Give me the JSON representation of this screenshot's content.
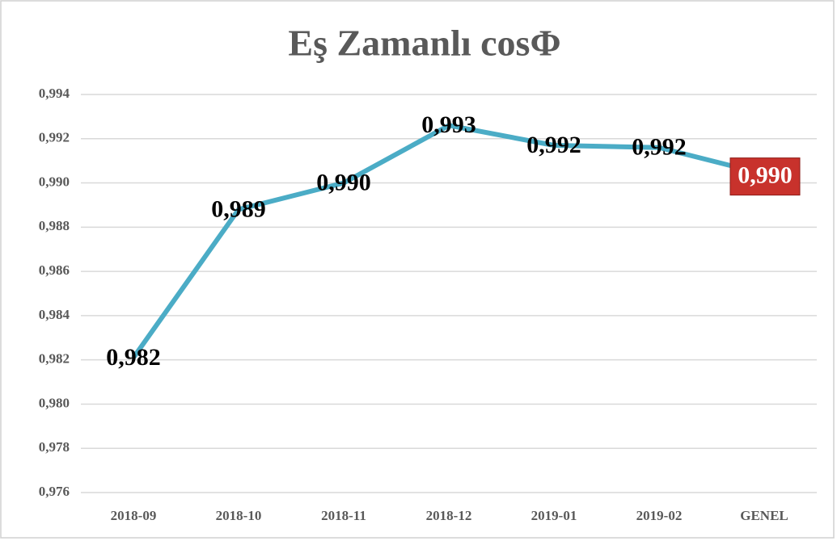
{
  "chart_data": {
    "type": "line",
    "title": "Eş Zamanlı cosΦ",
    "categories": [
      "2018-09",
      "2018-10",
      "2018-11",
      "2018-12",
      "2019-01",
      "2019-02",
      "GENEL"
    ],
    "values": [
      0.9821,
      0.9888,
      0.99,
      0.9926,
      0.9917,
      0.9916,
      0.9904
    ],
    "value_labels": [
      "0,982",
      "0,989",
      "0,990",
      "0,993",
      "0,992",
      "0,992",
      "0,990"
    ],
    "color": "#4bacc6",
    "highlight_color": "#c8322c",
    "ylim": [
      0.976,
      0.994
    ],
    "yticks": [
      {
        "value": 0.976,
        "label": "0,976"
      },
      {
        "value": 0.978,
        "label": "0,978"
      },
      {
        "value": 0.98,
        "label": "0,980"
      },
      {
        "value": 0.982,
        "label": "0,982"
      },
      {
        "value": 0.984,
        "label": "0,984"
      },
      {
        "value": 0.986,
        "label": "0,986"
      },
      {
        "value": 0.988,
        "label": "0,988"
      },
      {
        "value": 0.99,
        "label": "0,990"
      },
      {
        "value": 0.992,
        "label": "0,992"
      },
      {
        "value": 0.994,
        "label": "0,994"
      }
    ],
    "grid": true
  }
}
